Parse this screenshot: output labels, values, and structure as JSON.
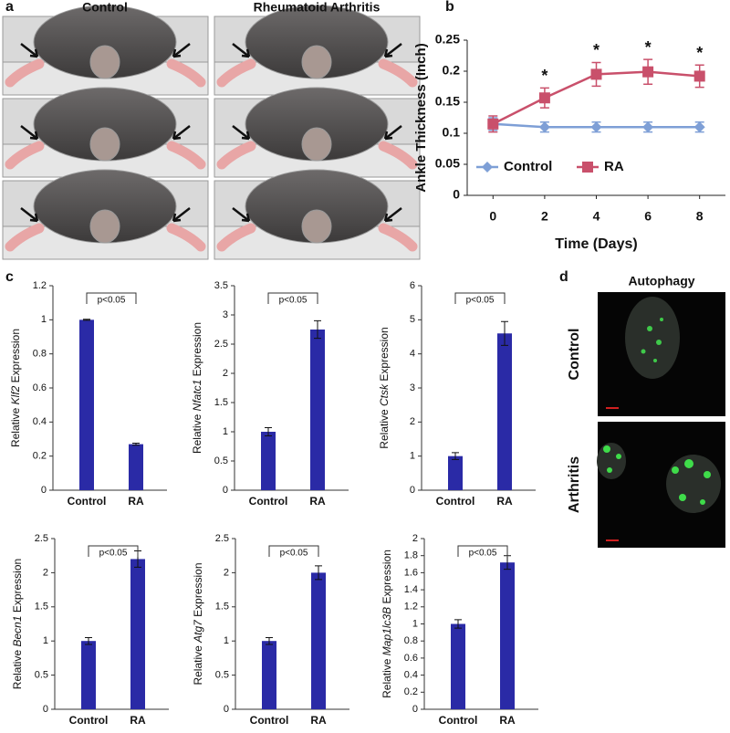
{
  "panel_labels": [
    "a",
    "b",
    "c",
    "d"
  ],
  "panel_a": {
    "columns": [
      "Control",
      "Rheumatoid Arthritis"
    ]
  },
  "panel_d": {
    "title": "Autophagy",
    "rows": [
      "Control",
      "Arthritis"
    ]
  },
  "chart_data": [
    {
      "type": "line",
      "x": [
        0,
        2,
        4,
        6,
        8
      ],
      "xlim": [
        -1,
        9
      ],
      "xticks": [
        0,
        2,
        4,
        6,
        8
      ],
      "ylim": [
        0,
        0.25
      ],
      "yticks": [
        0,
        0.05,
        0.1,
        0.15,
        0.2,
        0.25
      ],
      "xlabel": "Time  (Days)",
      "ylabel": "Ankle Thickness (Inch)",
      "legend": "bottom",
      "series": [
        {
          "name": "Control",
          "color": "#7e9fd6",
          "marker": "diamond",
          "values": [
            0.115,
            0.11,
            0.11,
            0.11,
            0.11
          ],
          "errors": [
            0.01,
            0.008,
            0.008,
            0.008,
            0.008
          ]
        },
        {
          "name": "RA",
          "color": "#c9506b",
          "marker": "square",
          "values": [
            0.115,
            0.157,
            0.195,
            0.199,
            0.192
          ],
          "errors": [
            0.013,
            0.016,
            0.019,
            0.02,
            0.018
          ]
        }
      ],
      "annotations": [
        {
          "text": "*",
          "x": 2
        },
        {
          "text": "*",
          "x": 4
        },
        {
          "text": "*",
          "x": 6
        },
        {
          "text": "*",
          "x": 8
        }
      ]
    },
    {
      "type": "bar",
      "categories": [
        "Control",
        "RA"
      ],
      "values": [
        1,
        0.27
      ],
      "errors": [
        0.003,
        0.006
      ],
      "color": "#2a2aa6",
      "ylim": [
        0,
        1.2
      ],
      "yticks": [
        0,
        0.2,
        0.4,
        0.6,
        0.8,
        1,
        1.2
      ],
      "ylabel": [
        "Relative ",
        "Klf2",
        " Expression"
      ],
      "annotation": "p<0.05"
    },
    {
      "type": "bar",
      "categories": [
        "Control",
        "RA"
      ],
      "values": [
        1,
        2.75
      ],
      "errors": [
        0.07,
        0.15
      ],
      "color": "#2a2aa6",
      "ylim": [
        0,
        3.5
      ],
      "yticks": [
        0,
        0.5,
        1,
        1.5,
        2,
        2.5,
        3,
        3.5
      ],
      "ylabel": [
        "Relative ",
        "Nfatc1",
        " Expression"
      ],
      "annotation": "p<0.05"
    },
    {
      "type": "bar",
      "categories": [
        "Control",
        "RA"
      ],
      "values": [
        1,
        4.6
      ],
      "errors": [
        0.1,
        0.35
      ],
      "color": "#2a2aa6",
      "ylim": [
        0,
        6
      ],
      "yticks": [
        0,
        1,
        2,
        3,
        4,
        5,
        6
      ],
      "ylabel": [
        "Relative ",
        "Ctsk",
        " Expression"
      ],
      "annotation": "p<0.05"
    },
    {
      "type": "bar",
      "categories": [
        "Control",
        "RA"
      ],
      "values": [
        1,
        2.2
      ],
      "errors": [
        0.05,
        0.12
      ],
      "color": "#2a2aa6",
      "ylim": [
        0,
        2.5
      ],
      "yticks": [
        0,
        0.5,
        1,
        1.5,
        2,
        2.5
      ],
      "ylabel": [
        "Relative ",
        "Becn1",
        " Expression"
      ],
      "annotation": "p<0.05"
    },
    {
      "type": "bar",
      "categories": [
        "Control",
        "RA"
      ],
      "values": [
        1,
        2
      ],
      "errors": [
        0.05,
        0.1
      ],
      "color": "#2a2aa6",
      "ylim": [
        0,
        2.5
      ],
      "yticks": [
        0,
        0.5,
        1,
        1.5,
        2,
        2.5
      ],
      "ylabel": [
        "Relative ",
        "Atg7",
        " Expression"
      ],
      "annotation": "p<0.05"
    },
    {
      "type": "bar",
      "categories": [
        "Control",
        "RA"
      ],
      "values": [
        1,
        1.72
      ],
      "errors": [
        0.05,
        0.08
      ],
      "color": "#2a2aa6",
      "ylim": [
        0,
        2
      ],
      "yticks": [
        0,
        0.2,
        0.4,
        0.6,
        0.8,
        1,
        1.2,
        1.4,
        1.6,
        1.8,
        2
      ],
      "ylabel": [
        "Relative ",
        "Map1lc3B",
        " Expression"
      ],
      "annotation": "p<0.05"
    }
  ]
}
